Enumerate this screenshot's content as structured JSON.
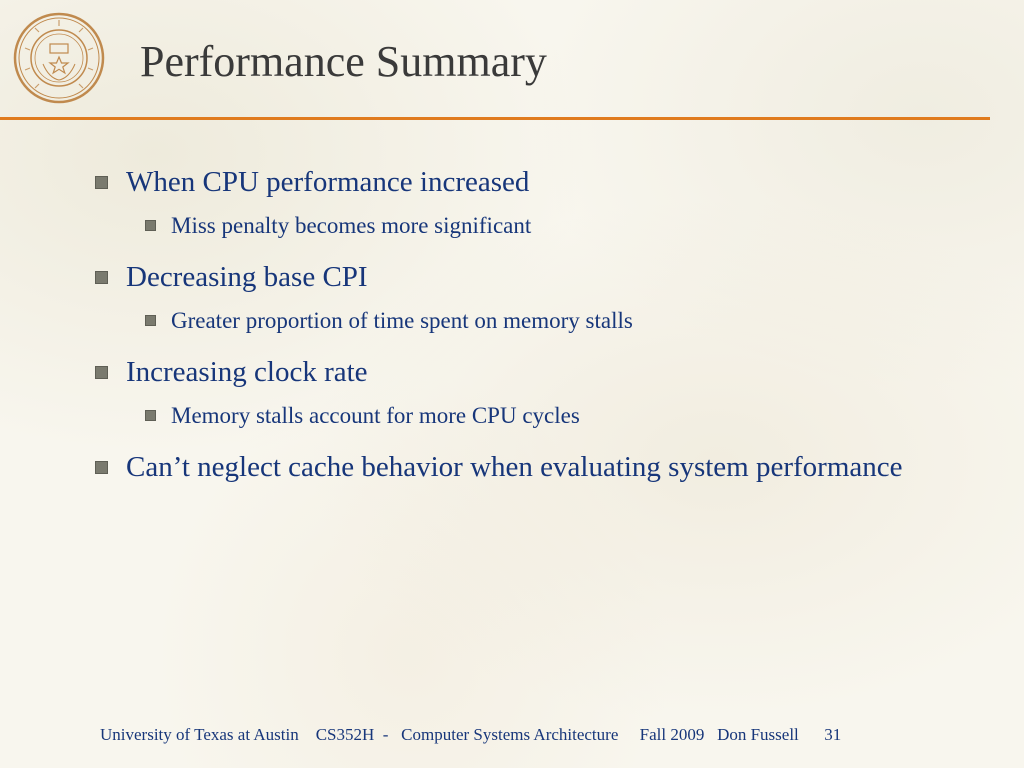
{
  "slide": {
    "title": "Performance Summary",
    "bullets": [
      {
        "text": "When CPU performance increased",
        "sub": [
          "Miss penalty becomes more significant"
        ]
      },
      {
        "text": "Decreasing base CPI",
        "sub": [
          "Greater proportion of time spent on memory stalls"
        ]
      },
      {
        "text": "Increasing clock rate",
        "sub": [
          "Memory stalls account for more CPU cycles"
        ]
      },
      {
        "text": "Can’t neglect cache behavior when evaluating system performance",
        "sub": []
      }
    ]
  },
  "footer": {
    "institution": "University of Texas at Austin",
    "course": "CS352H  -   Computer Systems Architecture",
    "term": "Fall 2009",
    "author": "Don Fussell",
    "page": "31"
  },
  "colors": {
    "accent": "#e07b1e",
    "text": "#17367a",
    "title": "#3a3a3a",
    "seal": "#c08a4e"
  },
  "logo": {
    "ring_text": "THE UNIVERSITY OF TEXAS AT AUSTIN",
    "motto": "DISCIPLINA PRAESIDIUM CIVITATIS"
  }
}
